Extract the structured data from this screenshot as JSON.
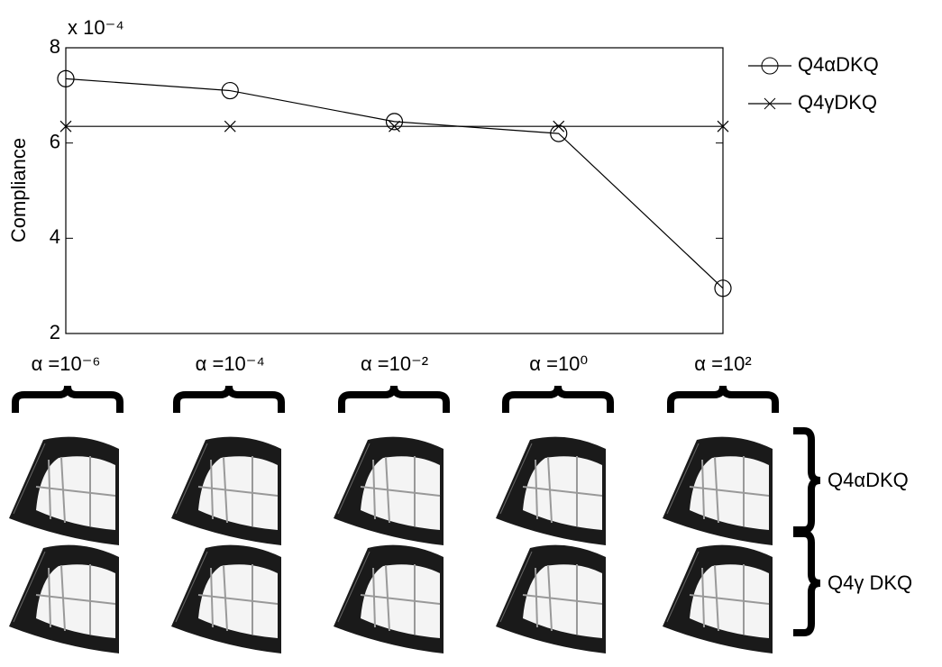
{
  "chart_data": {
    "type": "line",
    "y_label": "Compliance",
    "y_multiplier": "x 10⁻⁴",
    "categories": [
      "α =10⁻⁶",
      "α =10⁻⁴",
      "α =10⁻²",
      "α =10⁰",
      "α =10²"
    ],
    "series": [
      {
        "name": "Q4αDKQ",
        "color": "#000000",
        "marker": "circle",
        "values": [
          7.35,
          7.1,
          6.45,
          6.2,
          2.95
        ]
      },
      {
        "name": "Q4γDKQ",
        "color": "#000000",
        "marker": "cross",
        "values": [
          6.35,
          6.35,
          6.35,
          6.35,
          6.35
        ]
      }
    ],
    "ylim": [
      2,
      8
    ],
    "yticks": [
      2,
      4,
      6,
      8
    ],
    "grid": false,
    "legend": "right",
    "row_labels": [
      "Q4αDKQ",
      "Q4γ DKQ"
    ]
  }
}
